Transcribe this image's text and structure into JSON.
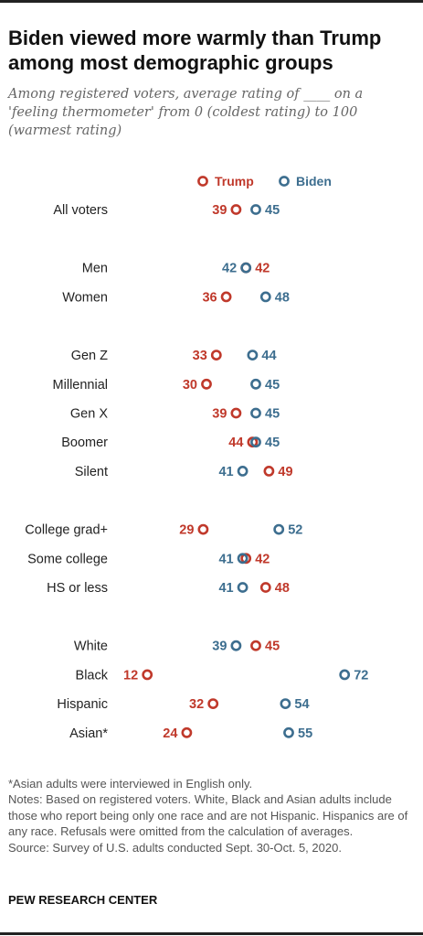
{
  "title": "Biden viewed more warmly than Trump among most demographic groups",
  "subtitle": "Among registered voters, average rating of ____ on a 'feeling thermometer' from 0 (coldest rating) to 100 (warmest rating)",
  "notes": {
    "asterisk": "*Asian adults were interviewed in English only.",
    "notes": "Notes: Based on registered voters. White, Black and Asian adults include those who report being only one race and are not Hispanic. Hispanics are of any race. Refusals were omitted from the calculation of averages.",
    "source": "Source: Survey of U.S. adults conducted Sept. 30-Oct. 5, 2020."
  },
  "brand": "PEW RESEARCH CENTER",
  "colors": {
    "trump": "#c0392b",
    "biden": "#3d6e8f",
    "label": "#222222"
  },
  "chart_data": {
    "type": "scatter",
    "subtype": "dot-plot",
    "xlim": [
      0,
      100
    ],
    "categories": [
      "All voters",
      "Men",
      "Women",
      "Gen Z",
      "Millennial",
      "Gen X",
      "Boomer",
      "Silent",
      "College grad+",
      "Some college",
      "HS or less",
      "White",
      "Black",
      "Hispanic",
      "Asian*"
    ],
    "groups": [
      [
        "All voters"
      ],
      [
        "Men",
        "Women"
      ],
      [
        "Gen Z",
        "Millennial",
        "Gen X",
        "Boomer",
        "Silent"
      ],
      [
        "College grad+",
        "Some college",
        "HS or less"
      ],
      [
        "White",
        "Black",
        "Hispanic",
        "Asian*"
      ]
    ],
    "series": [
      {
        "name": "Trump",
        "color": "#c0392b",
        "values": [
          39,
          42,
          36,
          33,
          30,
          39,
          44,
          49,
          29,
          42,
          48,
          45,
          12,
          32,
          24
        ]
      },
      {
        "name": "Biden",
        "color": "#3d6e8f",
        "values": [
          45,
          42,
          48,
          44,
          45,
          45,
          45,
          41,
          52,
          41,
          41,
          39,
          72,
          54,
          55
        ]
      }
    ],
    "legend": "top"
  }
}
